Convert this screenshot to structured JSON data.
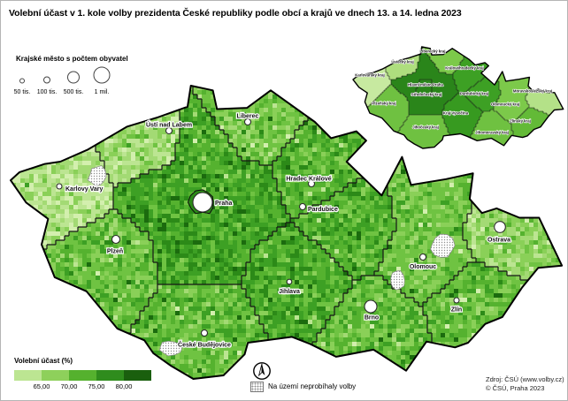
{
  "title": "Volební účast v 1. kole volby prezidenta České republiky podle obcí a krajů ve dnech 13. a 14. ledna 2023",
  "city_size_legend": {
    "title": "Krajské město s počtem obyvatel",
    "items": [
      {
        "label": "50 tis.",
        "r": 2.5
      },
      {
        "label": "100 tis.",
        "r": 3.5
      },
      {
        "label": "500 tis.",
        "r": 6.5
      },
      {
        "label": "1 mil.",
        "r": 9
      }
    ]
  },
  "turnout_legend": {
    "title": "Volební účast (%)",
    "classes": [
      "#bce592",
      "#8ed05b",
      "#55b12e",
      "#2f8c1d",
      "#1a5f0e"
    ],
    "ticks": [
      "65,00",
      "70,00",
      "75,00",
      "80,00"
    ]
  },
  "no_vote_legend": "Na území neprobíhaly volby",
  "source": [
    "Zdroj: ČSÚ (www.volby.cz)",
    "© ČSÚ, Praha 2023"
  ],
  "cities": [
    {
      "name": "Praha"
    },
    {
      "name": "Brno"
    },
    {
      "name": "Ostrava"
    },
    {
      "name": "Plzeň"
    },
    {
      "name": "Liberec"
    },
    {
      "name": "Olomouc"
    },
    {
      "name": "České Budějovice"
    },
    {
      "name": "Ústí nad Labem"
    },
    {
      "name": "Hradec Králové"
    },
    {
      "name": "Pardubice"
    },
    {
      "name": "Zlín"
    },
    {
      "name": "Jihlava"
    },
    {
      "name": "Karlovy Vary"
    }
  ],
  "regions": [
    {
      "name": "Hlavní město Praha",
      "color": "#2a851a"
    },
    {
      "name": "Středočeský kraj",
      "color": "#2a851a"
    },
    {
      "name": "Jihočeský kraj",
      "color": "#6fc141"
    },
    {
      "name": "Plzeňský kraj",
      "color": "#6fc141"
    },
    {
      "name": "Karlovarský kraj",
      "color": "#c7e9a0"
    },
    {
      "name": "Ústecký kraj",
      "color": "#aede7e"
    },
    {
      "name": "Liberecký kraj",
      "color": "#7cc94a"
    },
    {
      "name": "Královéhradecký kraj",
      "color": "#3da024"
    },
    {
      "name": "Pardubický kraj",
      "color": "#3da024"
    },
    {
      "name": "Kraj Vysočina",
      "color": "#379a20"
    },
    {
      "name": "Jihomoravský kraj",
      "color": "#6fc141"
    },
    {
      "name": "Olomoucký kraj",
      "color": "#7cc94a"
    },
    {
      "name": "Zlínský kraj",
      "color": "#63ba37"
    },
    {
      "name": "Moravskoslezský kraj",
      "color": "#b4e188"
    }
  ],
  "palette": [
    "#d3efae",
    "#bce592",
    "#a3da74",
    "#8ad058",
    "#6fc342",
    "#55b22f",
    "#3da024",
    "#2c8a18",
    "#1b6b0e"
  ]
}
